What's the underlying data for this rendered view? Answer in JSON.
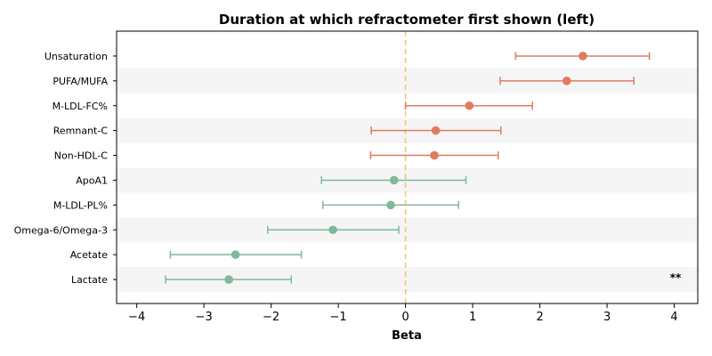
{
  "chart_data": {
    "type": "forest",
    "title": "Duration at which refractometer first shown (left)",
    "xlabel": "Beta",
    "xlim": [
      -4.3,
      4.35
    ],
    "xticks": [
      -4,
      -3,
      -2,
      -1,
      0,
      1,
      2,
      3,
      4
    ],
    "xtick_labels": [
      "−4",
      "−3",
      "−2",
      "−1",
      "0",
      "1",
      "2",
      "3",
      "4"
    ],
    "reference_line": 0,
    "colors": {
      "positive": "#e07b5f",
      "negative": "#7fb89b",
      "reference": "#f2c27a",
      "band": "#f5f5f5"
    },
    "rows": [
      {
        "label": "Unsaturation",
        "beta": 2.64,
        "low": 1.64,
        "high": 3.63
      },
      {
        "label": "PUFA/MUFA",
        "beta": 2.4,
        "low": 1.41,
        "high": 3.4
      },
      {
        "label": "M-LDL-FC%",
        "beta": 0.95,
        "low": 0.0,
        "high": 1.89
      },
      {
        "label": "Remnant-C",
        "beta": 0.45,
        "low": -0.51,
        "high": 1.42
      },
      {
        "label": "Non-HDL-C",
        "beta": 0.43,
        "low": -0.52,
        "high": 1.38
      },
      {
        "label": "ApoA1",
        "beta": -0.17,
        "low": -1.25,
        "high": 0.9
      },
      {
        "label": "M-LDL-PL%",
        "beta": -0.22,
        "low": -1.23,
        "high": 0.79
      },
      {
        "label": "Omega-6/Omega-3",
        "beta": -1.08,
        "low": -2.05,
        "high": -0.1
      },
      {
        "label": "Acetate",
        "beta": -2.53,
        "low": -3.5,
        "high": -1.55
      },
      {
        "label": "Lactate",
        "beta": -2.63,
        "low": -3.57,
        "high": -1.7
      }
    ],
    "annotations": [
      {
        "row": "Lactate",
        "text": "**"
      }
    ]
  }
}
